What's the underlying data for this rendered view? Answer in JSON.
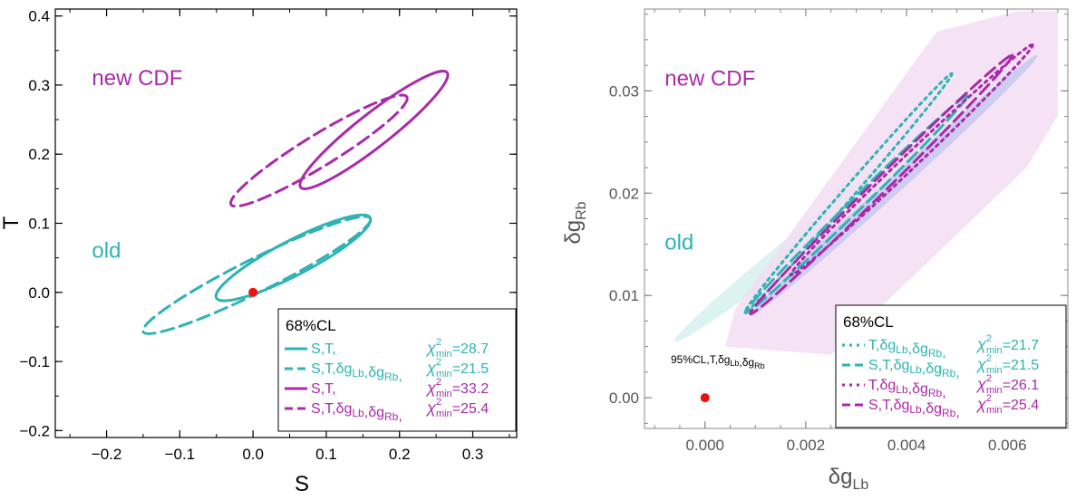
{
  "colors": {
    "old": "#2fb3b3",
    "new_cdf": "#aa2aaa",
    "point": "#ee1111",
    "fill68": "#c8c8ee",
    "fill95": "#d6f1ef",
    "fill_cdf": "#f3dcf3"
  },
  "chart_data": [
    {
      "type": "scatter",
      "xlabel": "S",
      "ylabel": "T",
      "xlim": [
        -0.27,
        0.36
      ],
      "ylim": [
        -0.21,
        0.41
      ],
      "x_ticks": [
        "-0.2",
        "-0.1",
        "0.0",
        "0.1",
        "0.2",
        "0.3"
      ],
      "y_ticks": [
        "-0.2",
        "-0.1",
        "0.0",
        "0.1",
        "0.2",
        "0.3",
        "0.4"
      ],
      "group_labels": [
        {
          "text": "new CDF",
          "at": [
            -0.22,
            0.3
          ],
          "color": "new_cdf"
        },
        {
          "text": "old",
          "at": [
            -0.22,
            0.05
          ],
          "color": "old"
        }
      ],
      "point": {
        "x": 0.0,
        "y": 0.0
      },
      "legend": {
        "title": "68%CL",
        "entries": [
          {
            "fit": "S,T,",
            "chi2": "=28.7",
            "style": "solid",
            "color": "old"
          },
          {
            "fit": "S,T,δgLb,δgRb,",
            "chi2": "=21.5",
            "style": "dashed",
            "color": "old"
          },
          {
            "fit": "S,T,",
            "chi2": "=33.2",
            "style": "solid",
            "color": "new_cdf"
          },
          {
            "fit": "S,T,δgLb,δgRb,",
            "chi2": "=25.4",
            "style": "dashed",
            "color": "new_cdf"
          }
        ]
      },
      "contours": [
        {
          "cx": 0.055,
          "cy": 0.05,
          "ends": [
            [
              -0.05,
              -0.008
            ],
            [
              0.16,
              0.108
            ]
          ],
          "half_width": 0.025,
          "style": "solid",
          "color": "old"
        },
        {
          "cx": 0.005,
          "cy": 0.025,
          "ends": [
            [
              -0.15,
              -0.057
            ],
            [
              0.16,
              0.107
            ]
          ],
          "half_width": 0.024,
          "style": "dashed",
          "color": "old"
        },
        {
          "cx": 0.17,
          "cy": 0.235,
          "ends": [
            [
              0.065,
              0.152
            ],
            [
              0.265,
              0.318
            ]
          ],
          "half_width": 0.024,
          "style": "solid",
          "color": "new_cdf"
        },
        {
          "cx": 0.095,
          "cy": 0.2,
          "ends": [
            [
              -0.03,
              0.127
            ],
            [
              0.21,
              0.283
            ]
          ],
          "half_width": 0.023,
          "style": "dashed",
          "color": "new_cdf"
        }
      ]
    },
    {
      "type": "scatter",
      "xlabel": "δgLb",
      "ylabel": "δgRb",
      "xlim": [
        -0.0012,
        0.0072
      ],
      "ylim": [
        -0.003,
        0.038
      ],
      "x_ticks": [
        "0.000",
        "0.002",
        "0.004",
        "0.006"
      ],
      "y_ticks": [
        "0.00",
        "0.01",
        "0.02",
        "0.03"
      ],
      "group_labels": [
        {
          "text": "new CDF",
          "at": [
            -0.0008,
            0.0305
          ],
          "color": "new_cdf"
        },
        {
          "text": "old",
          "at": [
            -0.0008,
            0.0145
          ],
          "color": "old"
        }
      ],
      "annotation": "95%CL,T,δgLb,δgRb",
      "point": {
        "x": 0.0,
        "y": 0.0
      },
      "legend": {
        "title": "68%CL",
        "entries": [
          {
            "fit": "T,δgLb,δgRb,",
            "chi2": "=21.7",
            "style": "dotted",
            "color": "old"
          },
          {
            "fit": "S,T,δgLb,δgRb,",
            "chi2": "=21.5",
            "style": "dashed",
            "color": "old"
          },
          {
            "fit": "T,δgLb,δgRb,",
            "chi2": "=26.1",
            "style": "dotted",
            "color": "new_cdf"
          },
          {
            "fit": "S,T,δgLb,δgRb,",
            "chi2": "=25.4",
            "style": "dashed",
            "color": "new_cdf"
          }
        ]
      },
      "regions": [
        {
          "kind": "ellipse",
          "cx": 0.003,
          "cy": 0.0195,
          "ends": [
            [
              -0.0006,
              0.0055
            ],
            [
              0.0066,
              0.0335
            ]
          ],
          "half_width": 0.0012,
          "fill": "fill95"
        },
        {
          "kind": "polygon",
          "points": [
            [
              0.0004,
              0.005
            ],
            [
              0.0006,
              0.0087
            ],
            [
              0.0046,
              0.0358
            ],
            [
              0.0062,
              0.0378
            ],
            [
              0.007,
              0.0378
            ],
            [
              0.007,
              0.0276
            ],
            [
              0.0064,
              0.0226
            ],
            [
              0.0025,
              0.0042
            ]
          ],
          "fill": "fill_cdf"
        },
        {
          "kind": "ellipse",
          "cx": 0.0037,
          "cy": 0.0205,
          "ends": [
            [
              0.0009,
              0.008
            ],
            [
              0.0066,
              0.0335
            ]
          ],
          "half_width": 0.0008,
          "fill": "fill68"
        }
      ],
      "contours": [
        {
          "cx": 0.003,
          "cy": 0.0195,
          "ends": [
            [
              0.0008,
              0.0084
            ],
            [
              0.0049,
              0.0317
            ]
          ],
          "half_width": 0.00055,
          "style": "dotted",
          "color": "old"
        },
        {
          "cx": 0.0028,
          "cy": 0.0185,
          "ends": [
            [
              0.0008,
              0.0083
            ],
            [
              0.0052,
              0.0295
            ]
          ],
          "half_width": 0.0006,
          "style": "dashed",
          "color": "old"
        },
        {
          "cx": 0.0043,
          "cy": 0.025,
          "ends": [
            [
              0.0017,
              0.012
            ],
            [
              0.0065,
              0.0345
            ]
          ],
          "half_width": 0.0007,
          "style": "dotted",
          "color": "new_cdf"
        },
        {
          "cx": 0.0035,
          "cy": 0.0215,
          "ends": [
            [
              0.0009,
              0.0082
            ],
            [
              0.0061,
              0.0335
            ]
          ],
          "half_width": 0.0007,
          "style": "dashed",
          "color": "new_cdf"
        }
      ]
    }
  ]
}
